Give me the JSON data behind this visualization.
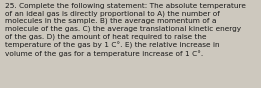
{
  "lines": [
    "25. Complete the following statement: The absolute temperature",
    "of an ideal gas is directly proportional to A) the number of",
    "molecules in the sample. B) the average momentum of a",
    "molecule of the gas. C) the average translational kinetic energy",
    "of the gas. D) the amount of heat required to raise the",
    "temperature of the gas by 1 C°. E) the relative increase in",
    "volume of the gas for a temperature increase of 1 C°."
  ],
  "font_size": 5.35,
  "text_color": "#1a1a1a",
  "background_color": "#cdc8be",
  "figwidth": 2.61,
  "figheight": 0.88,
  "dpi": 100
}
